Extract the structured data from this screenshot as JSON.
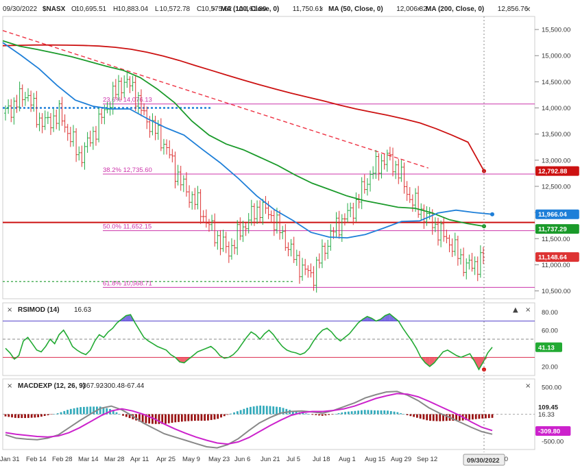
{
  "header": {
    "date": "09/30/2022",
    "symbol": "$NASX",
    "ohlc": [
      {
        "label": "O",
        "value": "10,695.51"
      },
      {
        "label": "H",
        "value": "10,883.04"
      },
      {
        "label": "L",
        "value": "10,572.78"
      },
      {
        "label": "C",
        "value": "10,575.62"
      },
      {
        "label": "Δ",
        "value": "-161.89"
      }
    ],
    "ma": [
      {
        "label": "MA (100, Close, 0)",
        "value": "11,750.61",
        "color": "#1a9a2a"
      },
      {
        "label": "MA (50, Close, 0)",
        "value": "12,006.82",
        "color": "#1e7fd8"
      },
      {
        "label": "MA (200, Close, 0)",
        "value": "12,856.76",
        "color": "#cc1111"
      }
    ]
  },
  "colors": {
    "ma100": "#1a9a2a",
    "ma50": "#1e7fd8",
    "ma200": "#cc1111",
    "fib": "#cc33aa",
    "up": "#22aa44",
    "down": "#dd3333",
    "rsi": "#22aa33",
    "rsi_overbought_fill": "#6655dd",
    "rsi_oversold_fill": "#ee4455",
    "macd": "#888888",
    "macd_signal": "#cc22cc",
    "hist_pos": "#33aabb",
    "hist_neg": "#991111",
    "trendline": "#ee3344"
  },
  "chart_data": [
    {
      "panel": "price",
      "type": "line",
      "title": "$NASX",
      "y_ticks": [
        "15,500.00",
        "15,000.00",
        "14,500.00",
        "14,000.00",
        "13,500.00",
        "13,000.00",
        "12,500.00",
        "12,000.00",
        "11,500.00",
        "11,000.00",
        "10,500.00"
      ],
      "ylim": [
        10350,
        15750
      ],
      "x_ticks": [
        "Jan 31",
        "Feb 14",
        "Feb 28",
        "Mar 14",
        "Mar 28",
        "Apr 11",
        "Apr 25",
        "May 9",
        "May 23",
        "Jun 6",
        "Jun 21",
        "Jul 5",
        "Jul 18",
        "Aug 1",
        "Aug 15",
        "Aug 29",
        "Sep 12",
        "Oct 10"
      ],
      "cursor_date": "09/30/2022",
      "series": [
        {
          "name": "MA (200, Close, 0)",
          "values": [
            15190,
            15198,
            15203,
            15204,
            15201,
            15195,
            15184,
            15160,
            15122,
            15065,
            14993,
            14908,
            14812,
            14718,
            14624,
            14533,
            14445,
            14361,
            14281,
            14206,
            14134,
            14054,
            13982,
            13920,
            13859,
            13790,
            13713,
            13604,
            13480,
            13345,
            12792.88
          ]
        },
        {
          "name": "MA (100, Close, 0)",
          "values": [
            15285,
            15180,
            15120,
            15050,
            14980,
            14890,
            14800,
            14720,
            14580,
            14360,
            14100,
            13750,
            13480,
            13310,
            13200,
            13050,
            12900,
            12720,
            12560,
            12440,
            12320,
            12230,
            12165,
            12100,
            12080,
            11990,
            11860,
            11790,
            11737.29
          ]
        },
        {
          "name": "MA (50, Close, 0)",
          "values": [
            15250,
            15010,
            14750,
            14430,
            14150,
            14030,
            13980,
            13980,
            13790,
            13620,
            13480,
            13210,
            12950,
            12650,
            12320,
            12050,
            11850,
            11620,
            11530,
            11515,
            11580,
            11700,
            11830,
            11840,
            11990,
            12045,
            12000,
            11966.04
          ]
        },
        {
          "name": "Close",
          "values": [
            13900,
            14100,
            14300,
            13800,
            13700,
            13900,
            13500,
            13050,
            13400,
            13800,
            14200,
            14500,
            14400,
            13850,
            13600,
            13300,
            12800,
            12400,
            12200,
            11800,
            11500,
            11250,
            11600,
            11900,
            12100,
            11950,
            11600,
            11200,
            10900,
            10800,
            11300,
            11700,
            11900,
            12150,
            12600,
            12900,
            13050,
            12800,
            12300,
            12050,
            11850,
            11600,
            11400,
            11050,
            10950,
            11148.64
          ]
        }
      ],
      "last_values": {
        "ma200": "12,792.88",
        "ma50": "11,966.04",
        "ma100": "11,737.29",
        "close": "11,148.64"
      },
      "fib_levels": [
        {
          "label": "23.6% 14,076.13",
          "value": 14076.13
        },
        {
          "label": "38.2% 12,735.60",
          "value": 12735.6
        },
        {
          "label": "50.0% 11,652.15",
          "value": 11652.15
        },
        {
          "label": "61.8% 10,568.71",
          "value": 10568.71
        }
      ],
      "support_level": 11810,
      "trendline": {
        "start": [
          0,
          15480
        ],
        "end": [
          0.7,
          12850
        ]
      },
      "blue_dotted_level": 14000,
      "green_dotted_level": 10680
    },
    {
      "panel": "rsi",
      "type": "line",
      "title": "RSIMOD (14)",
      "value": "16.63",
      "last_value": "41.13",
      "y_ticks": [
        "80.00",
        "60.00",
        "40.00",
        "20.00"
      ],
      "ylim": [
        10,
        90
      ],
      "overbought": 70,
      "oversold": 30,
      "midline": 50,
      "values": [
        40,
        35,
        28,
        32,
        48,
        52,
        45,
        38,
        36,
        42,
        50,
        45,
        55,
        60,
        52,
        42,
        38,
        35,
        33,
        38,
        48,
        55,
        52,
        58,
        62,
        68,
        72,
        76,
        77,
        68,
        60,
        52,
        48,
        45,
        42,
        40,
        38,
        33,
        30,
        25,
        24,
        28,
        32,
        36,
        38,
        40,
        42,
        38,
        32,
        29,
        30,
        33,
        38,
        45,
        52,
        58,
        55,
        50,
        56,
        60,
        55,
        48,
        42,
        38,
        36,
        35,
        33,
        35,
        40,
        48,
        55,
        60,
        62,
        58,
        52,
        48,
        52,
        56,
        62,
        68,
        72,
        75,
        73,
        70,
        72,
        76,
        78,
        74,
        70,
        62,
        55,
        48,
        40,
        30,
        24,
        20,
        24,
        30,
        36,
        38,
        35,
        32,
        30,
        32,
        34,
        26,
        16.63,
        25,
        35,
        41.13
      ]
    },
    {
      "panel": "macd",
      "type": "line",
      "title": "MACDEXP (12, 26, 9)",
      "values_text": [
        "-367.92",
        "-300.48",
        "-67.44"
      ],
      "last_values": {
        "histogram": "109.45",
        "signal_behind": "16.33",
        "signal": "-309.80"
      },
      "y_ticks": [
        "500.00",
        "-500.00"
      ],
      "ylim": [
        -650,
        650
      ],
      "series": [
        {
          "name": "MACD",
          "values": [
            -380,
            -440,
            -460,
            -470,
            -440,
            -380,
            -250,
            -120,
            0,
            110,
            150,
            80,
            -30,
            -160,
            -260,
            -360,
            -420,
            -480,
            -540,
            -600,
            -620,
            -560,
            -450,
            -300,
            -160,
            -60,
            20,
            50,
            60,
            40,
            20,
            70,
            140,
            210,
            300,
            360,
            410,
            420,
            350,
            250,
            120,
            20,
            -60,
            -150,
            -240,
            -320,
            -367.92
          ]
        },
        {
          "name": "Signal",
          "values": [
            -340,
            -370,
            -390,
            -410,
            -420,
            -400,
            -340,
            -250,
            -140,
            -30,
            60,
            100,
            60,
            0,
            -80,
            -180,
            -270,
            -350,
            -420,
            -480,
            -530,
            -550,
            -510,
            -430,
            -320,
            -210,
            -110,
            -20,
            30,
            50,
            50,
            70,
            100,
            150,
            220,
            290,
            340,
            380,
            370,
            320,
            240,
            150,
            60,
            -30,
            -140,
            -240,
            -300.48
          ]
        },
        {
          "name": "Histogram",
          "values": [
            -40,
            -70,
            -70,
            -60,
            -20,
            20,
            90,
            130,
            140,
            140,
            90,
            -20,
            -90,
            -160,
            -180,
            -180,
            -150,
            -130,
            -120,
            -120,
            -90,
            -10,
            60,
            130,
            160,
            150,
            130,
            70,
            30,
            -10,
            -30,
            0,
            40,
            60,
            80,
            70,
            70,
            40,
            -20,
            -70,
            -120,
            -130,
            -120,
            -120,
            -100,
            -80,
            -67.44
          ]
        }
      ]
    }
  ],
  "controls": {
    "close": "✕",
    "up": "▲",
    "down": "▼",
    "x": "×"
  }
}
